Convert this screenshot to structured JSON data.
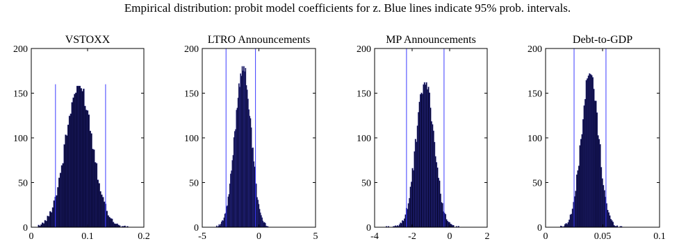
{
  "figure_title": "Empirical distribution: probit model coefficients for z. Blue lines indicate 95% prob. intervals.",
  "colors": {
    "bar": "#05052a",
    "bar_edge": "#2a2a8c",
    "interval_line": "#3a3aff",
    "axis": "#000000"
  },
  "chart_data": [
    {
      "type": "bar",
      "title": "VSTOXX",
      "xlim": [
        0,
        0.2
      ],
      "ylim": [
        0,
        200
      ],
      "xticks": [
        0,
        0.1,
        0.2
      ],
      "xtick_labels": [
        "0",
        "0.1",
        "0.2"
      ],
      "yticks": [
        0,
        50,
        100,
        150,
        200
      ],
      "ytick_labels": [
        "0",
        "50",
        "100",
        "150",
        "200"
      ],
      "histogram": {
        "mean": 0.085,
        "sd": 0.024,
        "peak": 158,
        "range": [
          0.012,
          0.172
        ],
        "n_bins": 70
      },
      "interval_lines": [
        {
          "x": 0.043,
          "height": 160
        },
        {
          "x": 0.132,
          "height": 160
        }
      ]
    },
    {
      "type": "bar",
      "title": "LTRO Announcements",
      "xlim": [
        -5,
        5
      ],
      "ylim": [
        0,
        200
      ],
      "xticks": [
        -5,
        0,
        5
      ],
      "xtick_labels": [
        "-5",
        "0",
        "5"
      ],
      "yticks": [
        0,
        50,
        100,
        150,
        200
      ],
      "ytick_labels": [
        "0",
        "50",
        "100",
        "150",
        "200"
      ],
      "histogram": {
        "mean": -1.4,
        "sd": 0.7,
        "peak": 180,
        "range": [
          -4.2,
          0.9
        ],
        "n_bins": 70
      },
      "interval_lines": [
        {
          "x": -2.9,
          "height": 200
        },
        {
          "x": -0.3,
          "height": 200
        }
      ]
    },
    {
      "type": "bar",
      "title": "MP Announcements",
      "xlim": [
        -4,
        2
      ],
      "ylim": [
        0,
        200
      ],
      "xticks": [
        -4,
        -2,
        0,
        2
      ],
      "xtick_labels": [
        "-4",
        "-2",
        "0",
        "2"
      ],
      "yticks": [
        0,
        50,
        100,
        150,
        200
      ],
      "ytick_labels": [
        "0",
        "50",
        "100",
        "150",
        "200"
      ],
      "histogram": {
        "mean": -1.3,
        "sd": 0.48,
        "peak": 162,
        "range": [
          -3.5,
          0.5
        ],
        "n_bins": 75
      },
      "interval_lines": [
        {
          "x": -2.3,
          "height": 200
        },
        {
          "x": -0.3,
          "height": 200
        }
      ]
    },
    {
      "type": "bar",
      "title": "Debt-to-GDP",
      "xlim": [
        0,
        0.1
      ],
      "ylim": [
        0,
        200
      ],
      "xticks": [
        0,
        0.05,
        0.1
      ],
      "xtick_labels": [
        "0",
        "0.05",
        "0.1"
      ],
      "yticks": [
        0,
        50,
        100,
        150,
        200
      ],
      "ytick_labels": [
        "0",
        "50",
        "100",
        "150",
        "200"
      ],
      "histogram": {
        "mean": 0.039,
        "sd": 0.0075,
        "peak": 172,
        "range": [
          0.012,
          0.068
        ],
        "n_bins": 60
      },
      "interval_lines": [
        {
          "x": 0.025,
          "height": 200
        },
        {
          "x": 0.053,
          "height": 200
        }
      ]
    }
  ]
}
